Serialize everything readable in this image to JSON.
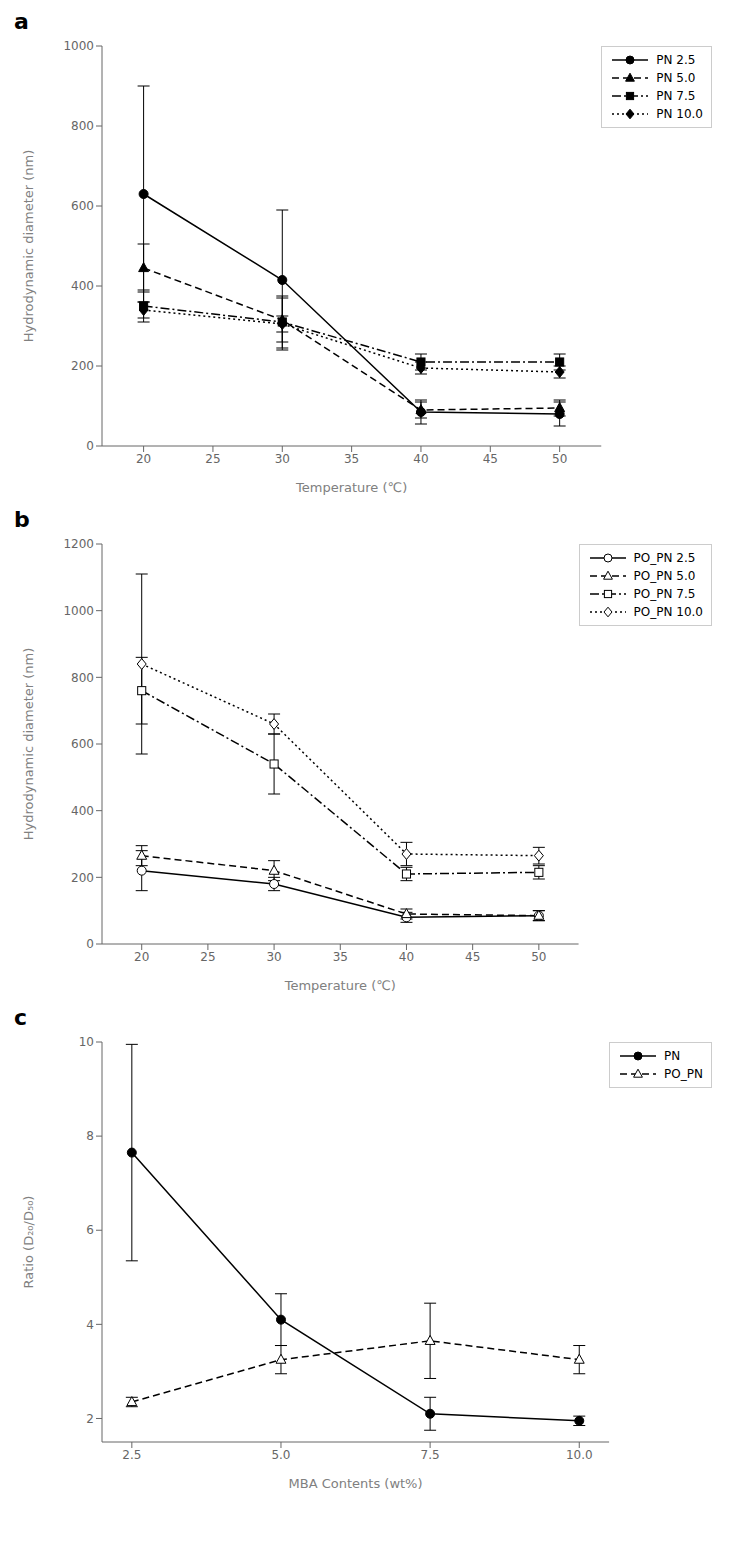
{
  "chart_data": [
    {
      "type": "line",
      "title": "a",
      "xlabel": "Temperature (℃)",
      "ylabel": "Hydrodynamic diameter (nm)",
      "xlim": [
        17,
        53
      ],
      "xticks": [
        20,
        25,
        30,
        35,
        40,
        45,
        50
      ],
      "ylim": [
        0,
        1000
      ],
      "yticks": [
        0,
        200,
        400,
        600,
        800,
        1000
      ],
      "color": "black",
      "grid": false,
      "legend": "upper right",
      "series": [
        {
          "name": "PN 2.5",
          "x": [
            20,
            30,
            40,
            50
          ],
          "values": [
            630,
            415,
            85,
            80
          ],
          "errors": [
            270,
            175,
            30,
            30
          ],
          "line_style": "solid",
          "marker": "circle"
        },
        {
          "name": "PN 5.0",
          "x": [
            20,
            30,
            40,
            50
          ],
          "values": [
            445,
            315,
            90,
            95
          ],
          "errors": [
            60,
            55,
            20,
            20
          ],
          "line_style": "dashed",
          "marker": "triangle"
        },
        {
          "name": "PN 7.5",
          "x": [
            20,
            30,
            40,
            50
          ],
          "values": [
            350,
            310,
            210,
            210
          ],
          "errors": [
            40,
            65,
            20,
            20
          ],
          "line_style": "dashdot",
          "marker": "square"
        },
        {
          "name": "PN 10.0",
          "x": [
            20,
            30,
            40,
            50
          ],
          "values": [
            340,
            305,
            195,
            185
          ],
          "errors": [
            20,
            20,
            15,
            15
          ],
          "line_style": "dotted",
          "marker": "diamond"
        }
      ]
    },
    {
      "type": "line",
      "title": "b",
      "xlabel": "Temperature (℃)",
      "ylabel": "Hydrodynamic diameter (nm)",
      "xlim": [
        17,
        53
      ],
      "xticks": [
        20,
        25,
        30,
        35,
        40,
        45,
        50
      ],
      "ylim": [
        0,
        1200
      ],
      "yticks": [
        0,
        200,
        400,
        600,
        800,
        1000,
        1200
      ],
      "color": "black",
      "grid": false,
      "legend": "upper right",
      "series": [
        {
          "name": "PO_PN 2.5",
          "x": [
            20,
            30,
            40,
            50
          ],
          "values": [
            220,
            180,
            80,
            85
          ],
          "errors": [
            60,
            20,
            15,
            15
          ],
          "line_style": "solid",
          "marker": "circle-open"
        },
        {
          "name": "PO_PN 5.0",
          "x": [
            20,
            30,
            40,
            50
          ],
          "values": [
            265,
            220,
            90,
            85
          ],
          "errors": [
            30,
            30,
            15,
            15
          ],
          "line_style": "dashed",
          "marker": "triangle-open"
        },
        {
          "name": "PO_PN 7.5",
          "x": [
            20,
            30,
            40,
            50
          ],
          "values": [
            760,
            540,
            210,
            215
          ],
          "errors": [
            100,
            90,
            20,
            20
          ],
          "line_style": "dashdot",
          "marker": "square-open"
        },
        {
          "name": "PO_PN 10.0",
          "x": [
            20,
            30,
            40,
            50
          ],
          "values": [
            840,
            660,
            270,
            265
          ],
          "errors": [
            270,
            30,
            35,
            25
          ],
          "line_style": "dotted",
          "marker": "diamond-open"
        }
      ]
    },
    {
      "type": "line",
      "title": "c",
      "xlabel": "MBA Contents (wt%)",
      "ylabel": "Ratio (D₂₀/D₅₀)",
      "xlim": [
        2.0,
        10.5
      ],
      "xticks": [
        2.5,
        {
          "value": 5.0,
          "label": "5.0"
        },
        7.5,
        {
          "value": 10.0,
          "label": "10.0"
        }
      ],
      "ylim": [
        1.5,
        10
      ],
      "yticks": [
        2,
        4,
        6,
        8,
        10
      ],
      "color": "black",
      "grid": false,
      "legend": "upper right",
      "series": [
        {
          "name": "PN",
          "x": [
            2.5,
            5.0,
            7.5,
            10.0
          ],
          "values": [
            7.65,
            4.1,
            2.1,
            1.95
          ],
          "errors": [
            2.3,
            0.55,
            0.35,
            0.1
          ],
          "line_style": "solid",
          "marker": "circle"
        },
        {
          "name": "PO_PN",
          "x": [
            2.5,
            5.0,
            7.5,
            10.0
          ],
          "values": [
            2.35,
            3.25,
            3.65,
            3.25
          ],
          "errors": [
            0.1,
            0.3,
            0.8,
            0.3
          ],
          "line_style": "dashed",
          "marker": "triangle-open"
        }
      ]
    }
  ]
}
